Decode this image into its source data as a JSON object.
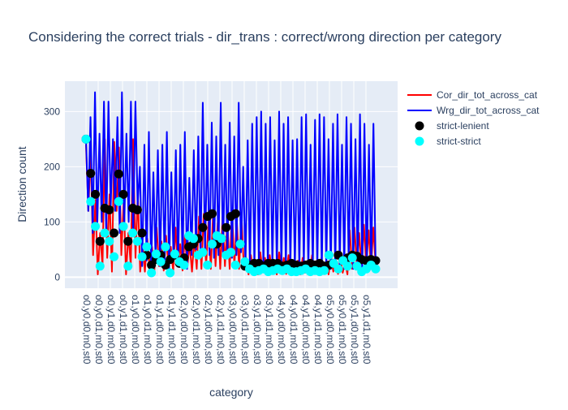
{
  "chart_data": {
    "type": "line",
    "title": "Considering the correct trials - dir_trans : correct/wrong direction per category",
    "xlabel": "category",
    "ylabel": "Direction count",
    "ylim": [
      -20,
      355
    ],
    "yticks": [
      0,
      100,
      200,
      300
    ],
    "grid": true,
    "legend_position": "top-right",
    "categories_count": 120,
    "xtick_labels": [
      "o0,y0,d0,m0,st0",
      "o0,y0,d1,m0,st0",
      "o0,y1,d0,m0,st0",
      "o0,y1,d1,m0,st0",
      "o1,y0,d0,m0,st0",
      "o1,y0,d1,m0,st0",
      "o1,y1,d0,m0,st0",
      "o1,y1,d1,m0,st0",
      "o2,y0,d0,m0,st0",
      "o2,y0,d1,m0,st0",
      "o2,y1,d0,m0,st0",
      "o2,y1,d1,m0,st0",
      "o3,y0,d0,m0,st0",
      "o3,y0,d1,m0,st0",
      "o3,y1,d0,m0,st0",
      "o3,y1,d1,m0,st0",
      "o4,y0,d0,m0,st0",
      "o4,y0,d1,m0,st0",
      "o4,y1,d0,m0,st0",
      "o4,y1,d1,m0,st0",
      "o5,y0,d0,m0,st0",
      "o5,y0,d1,m0,st0",
      "o5,y1,d0,m0,st0",
      "o5,y1,d1,m0,st0"
    ],
    "xtick_step": 5,
    "series": [
      {
        "name": "Cor_dir_tot_across_cat",
        "color": "#ff0000",
        "mode": "lines",
        "values": [
          240,
          120,
          230,
          40,
          140,
          5,
          80,
          20,
          250,
          35,
          150,
          10,
          245,
          120,
          235,
          40,
          140,
          5,
          80,
          20,
          250,
          35,
          150,
          10,
          60,
          10,
          70,
          15,
          55,
          10,
          90,
          20,
          65,
          12,
          75,
          18,
          55,
          10,
          90,
          20,
          60,
          12,
          75,
          18,
          60,
          10,
          70,
          15,
          110,
          15,
          115,
          20,
          100,
          15,
          120,
          20,
          105,
          15,
          110,
          20,
          100,
          15,
          120,
          20,
          105,
          15,
          110,
          20,
          35,
          5,
          40,
          8,
          30,
          5,
          45,
          10,
          35,
          6,
          40,
          8,
          30,
          5,
          45,
          10,
          35,
          6,
          40,
          8,
          30,
          5,
          30,
          5,
          35,
          8,
          28,
          5,
          40,
          10,
          30,
          6,
          35,
          8,
          28,
          5,
          40,
          10,
          30,
          6,
          35,
          8,
          28,
          5,
          85,
          15,
          90,
          20,
          80,
          15,
          95,
          20,
          85,
          15,
          90,
          20
        ]
      },
      {
        "name": "Wrg_dir_tot_across_cat",
        "color": "#0000ff",
        "mode": "lines",
        "values": [
          250,
          120,
          290,
          80,
          335,
          90,
          260,
          100,
          318,
          75,
          318,
          130,
          250,
          120,
          290,
          80,
          335,
          90,
          260,
          100,
          318,
          75,
          318,
          130,
          200,
          20,
          240,
          30,
          263,
          15,
          190,
          30,
          230,
          20,
          240,
          25,
          263,
          15,
          190,
          30,
          230,
          20,
          240,
          25,
          263,
          15,
          180,
          40,
          230,
          50,
          255,
          40,
          316,
          45,
          240,
          40,
          280,
          35,
          255,
          40,
          316,
          45,
          240,
          40,
          280,
          35,
          255,
          40,
          316,
          45,
          200,
          20,
          248,
          15,
          278,
          15,
          290,
          20,
          300,
          15,
          278,
          15,
          290,
          20,
          248,
          15,
          300,
          15,
          278,
          15,
          290,
          20,
          248,
          15,
          250,
          15,
          290,
          20,
          295,
          15,
          240,
          20,
          285,
          15,
          295,
          15,
          290,
          20,
          250,
          15,
          278,
          15,
          295,
          20,
          240,
          15,
          290,
          20,
          278,
          15,
          250,
          20,
          295,
          15,
          278,
          15,
          240,
          20,
          278,
          15
        ]
      },
      {
        "name": "strict-lenient",
        "color": "#000000",
        "mode": "markers",
        "values": [
          250,
          188,
          150,
          65,
          125,
          122,
          80,
          187,
          150,
          65,
          125,
          122,
          80,
          40,
          22,
          32,
          40,
          22,
          32,
          40,
          25,
          35,
          55,
          60,
          70,
          90,
          110,
          115,
          60,
          70,
          90,
          110,
          115,
          60,
          20,
          22,
          25,
          25,
          20,
          25,
          25,
          25,
          20,
          22,
          25,
          22,
          20,
          22,
          25,
          22,
          25,
          20,
          22,
          25,
          40,
          30,
          35,
          40,
          38,
          32,
          30,
          32,
          30
        ]
      },
      {
        "name": "strict-strict",
        "color": "#00ffff",
        "mode": "markers",
        "values": [
          250,
          137,
          92,
          20,
          80,
          65,
          37,
          137,
          92,
          20,
          80,
          65,
          37,
          55,
          8,
          42,
          28,
          55,
          8,
          42,
          28,
          22,
          75,
          70,
          40,
          45,
          22,
          60,
          75,
          70,
          40,
          45,
          22,
          60,
          28,
          15,
          10,
          12,
          15,
          10,
          12,
          15,
          12,
          15,
          10,
          10,
          12,
          15,
          10,
          12,
          10,
          12,
          40,
          25,
          15,
          30,
          20,
          35,
          20,
          10,
          15,
          22,
          15
        ]
      }
    ]
  }
}
